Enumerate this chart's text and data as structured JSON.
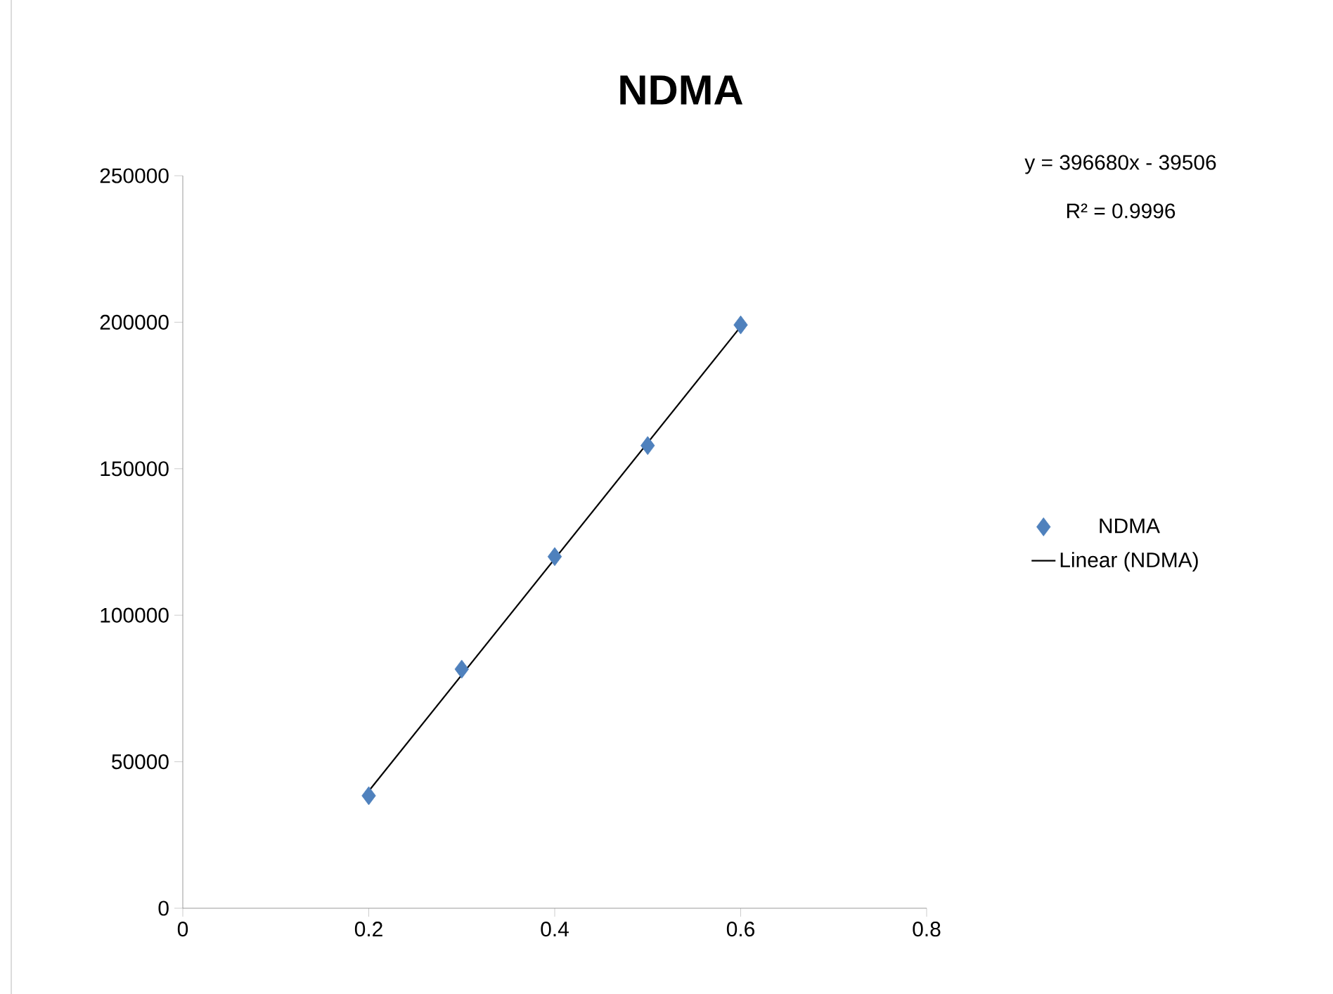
{
  "chart_data": {
    "type": "scatter",
    "title": "NDMA",
    "x": [
      0.2,
      0.3,
      0.4,
      0.5,
      0.6
    ],
    "series": [
      {
        "name": "NDMA",
        "color": "#4f81bd",
        "marker": "diamond",
        "values": [
          38400,
          81600,
          120000,
          157900,
          199100
        ]
      },
      {
        "name": "Linear (NDMA)",
        "type": "line",
        "marker": "none",
        "color": "#000000",
        "x": [
          0.2,
          0.6
        ],
        "values": [
          40000,
          198500
        ]
      }
    ],
    "xlim": [
      0,
      0.8
    ],
    "ylim": [
      0,
      250000
    ],
    "xticks": [
      0,
      0.2,
      0.4,
      0.6,
      0.8
    ],
    "yticks": [
      0,
      50000,
      100000,
      150000,
      200000,
      250000
    ],
    "legend": "right",
    "annotations": [
      "y = 396680x - 39506",
      "R² = 0.9996"
    ]
  }
}
